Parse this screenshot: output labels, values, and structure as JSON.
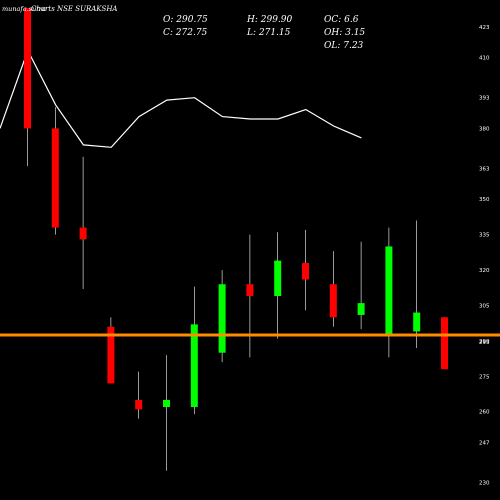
{
  "brand": "munafa.sutra",
  "chart_data": {
    "type": "candlestick",
    "title": "Charts NSE SURAKSHA",
    "ohlc_summary": {
      "open": "O: 290.75",
      "close": "C: 272.75",
      "high": "H: 299.90",
      "low": "L: 271.15",
      "oc": "OC: 6.6",
      "oh": "OH: 3.15",
      "ol": "OL: 7.23"
    },
    "y_ticks": [
      423,
      410,
      393,
      380,
      363,
      350,
      335,
      320,
      305,
      290,
      275,
      260,
      247,
      230
    ],
    "ylim": [
      226,
      431
    ],
    "current_price_label": "293",
    "current_price": 292.5,
    "colors": {
      "up": "#00ff00",
      "down": "#ff0000",
      "wick": "#ffffff",
      "price_line": "#ff8c00",
      "overlay_line": "#ffffff",
      "background": "#000000"
    },
    "candles": [
      {
        "open": 431,
        "high": 431,
        "low": 364,
        "close": 380
      },
      {
        "open": 380,
        "high": 389,
        "low": 335,
        "close": 338
      },
      {
        "open": 338,
        "high": 368,
        "low": 312,
        "close": 333
      },
      {
        "open": 296,
        "high": 300,
        "low": 272,
        "close": 272
      },
      {
        "open": 265,
        "high": 277,
        "low": 257,
        "close": 261
      },
      {
        "open": 262,
        "high": 284,
        "low": 235,
        "close": 265
      },
      {
        "open": 262,
        "high": 313,
        "low": 259,
        "close": 297
      },
      {
        "open": 285,
        "high": 320,
        "low": 281,
        "close": 314
      },
      {
        "open": 314,
        "high": 335,
        "low": 283,
        "close": 309
      },
      {
        "open": 309,
        "high": 336,
        "low": 291,
        "close": 324
      },
      {
        "open": 323,
        "high": 337,
        "low": 303,
        "close": 316
      },
      {
        "open": 314,
        "high": 328,
        "low": 296,
        "close": 300
      },
      {
        "open": 301,
        "high": 332,
        "low": 295,
        "close": 306
      },
      {
        "open": 293,
        "high": 338,
        "low": 283,
        "close": 330
      },
      {
        "open": 294,
        "high": 341,
        "low": 287,
        "close": 302
      },
      {
        "open": 300,
        "high": 300,
        "low": 279,
        "close": 278
      }
    ],
    "overlay_line": [
      380,
      413,
      390,
      373,
      372,
      385,
      392,
      393,
      385,
      384,
      384,
      388,
      381,
      376
    ]
  }
}
